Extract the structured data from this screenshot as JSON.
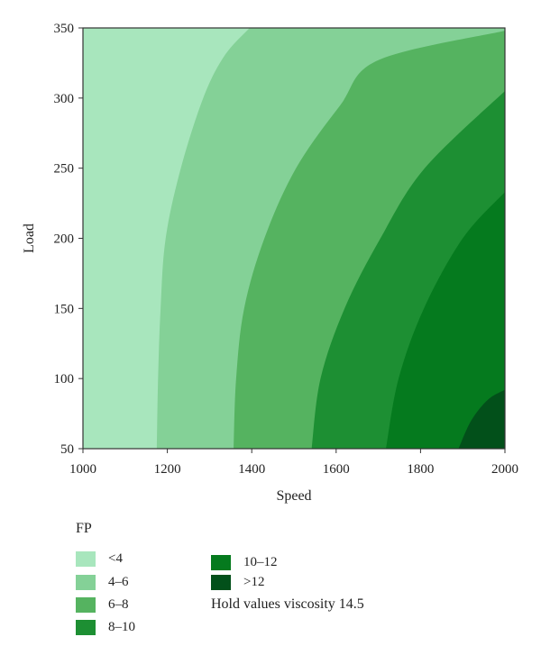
{
  "chart_data": {
    "type": "contour",
    "xlabel": "Speed",
    "ylabel": "Load",
    "xlim": [
      1000,
      2000
    ],
    "ylim": [
      50,
      350
    ],
    "x_ticks": [
      "1000",
      "1200",
      "1400",
      "1600",
      "1800",
      "2000"
    ],
    "y_ticks": [
      "50",
      "100",
      "150",
      "200",
      "250",
      "300",
      "350"
    ],
    "legend_title": "FP",
    "levels": [
      {
        "label": "<4",
        "color": "#a8e6bd"
      },
      {
        "label": "4–6",
        "color": "#84d197"
      },
      {
        "label": "6–8",
        "color": "#55b360"
      },
      {
        "label": "8–10",
        "color": "#1d8f33"
      },
      {
        "label": "10–12",
        "color": "#057a1e"
      },
      {
        "label": ">12",
        "color": "#02501a"
      }
    ],
    "boundaries": [
      {
        "between": "<4 | 4–6",
        "points": [
          [
            1175,
            50
          ],
          [
            1178,
            100
          ],
          [
            1184,
            150
          ],
          [
            1196,
            200
          ],
          [
            1232,
            250
          ],
          [
            1285,
            300
          ],
          [
            1335,
            330
          ],
          [
            1395,
            350
          ]
        ]
      },
      {
        "between": "4–6 | 6–8",
        "points": [
          [
            1357,
            50
          ],
          [
            1363,
            100
          ],
          [
            1382,
            150
          ],
          [
            1430,
            200
          ],
          [
            1505,
            250
          ],
          [
            1610,
            295
          ],
          [
            1700,
            327
          ],
          [
            2000,
            348
          ]
        ]
      },
      {
        "between": "6–8 | 8–10",
        "points": [
          [
            1542,
            50
          ],
          [
            1563,
            100
          ],
          [
            1620,
            150
          ],
          [
            1705,
            200
          ],
          [
            1810,
            250
          ],
          [
            2000,
            305
          ]
        ]
      },
      {
        "between": "8–10 | 10–12",
        "points": [
          [
            1718,
            50
          ],
          [
            1748,
            100
          ],
          [
            1808,
            150
          ],
          [
            1900,
            200
          ],
          [
            2000,
            233
          ]
        ]
      },
      {
        "between": "10–12 | >12",
        "points": [
          [
            1890,
            50
          ],
          [
            1920,
            70
          ],
          [
            1960,
            85
          ],
          [
            2000,
            92
          ]
        ]
      }
    ],
    "secondary_boundary": {
      "between": "10–12 inner",
      "points": [
        [
          1905,
          50
        ],
        [
          1930,
          100
        ],
        [
          1970,
          140
        ],
        [
          2000,
          160
        ]
      ]
    },
    "note": "Hold values viscosity 14.5"
  }
}
